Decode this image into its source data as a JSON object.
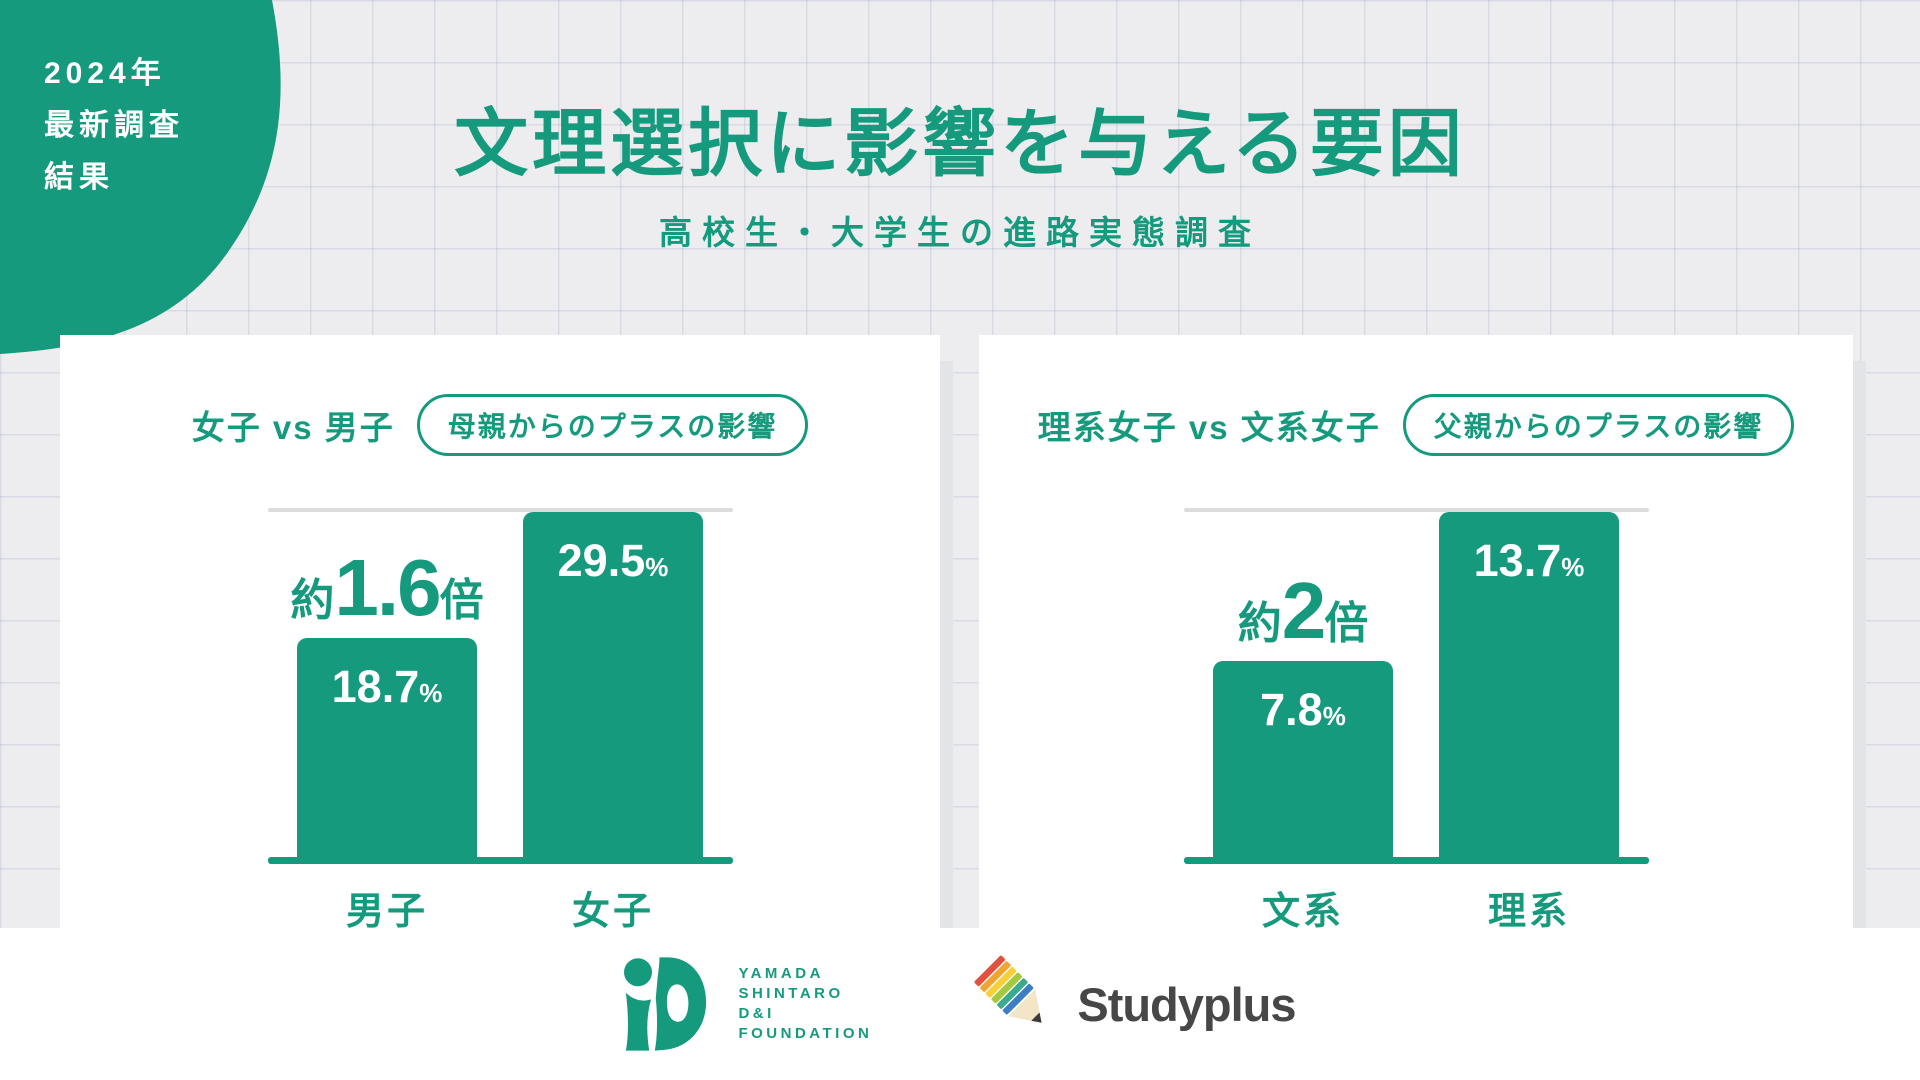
{
  "badge": {
    "lines": [
      "2024年",
      "最新調査",
      "結果"
    ]
  },
  "header": {
    "title": "文理選択に影響を与える要因",
    "subtitle": "高校生・大学生の進路実態調査"
  },
  "charts": [
    {
      "comparison": "女子 vs 男子",
      "tag": "母親からのプラスの影響",
      "ratio": {
        "prefix": "約",
        "number": "1.6",
        "suffix": "倍"
      },
      "bars": [
        {
          "label": "男子",
          "display": "18.7",
          "unit": "%"
        },
        {
          "label": "女子",
          "display": "29.5",
          "unit": "%"
        }
      ]
    },
    {
      "comparison": "理系女子 vs 文系女子",
      "tag": "父親からのプラスの影響",
      "ratio": {
        "prefix": "約",
        "number": "2",
        "suffix": "倍"
      },
      "bars": [
        {
          "label": "文系",
          "display": "7.8",
          "unit": "%"
        },
        {
          "label": "理系",
          "display": "13.7",
          "unit": "%"
        }
      ]
    }
  ],
  "chart_data": [
    {
      "type": "bar",
      "title": "女子 vs 男子（母親からのプラスの影響）",
      "categories": [
        "男子",
        "女子"
      ],
      "values": [
        18.7,
        29.5
      ],
      "unit": "%",
      "annotation": "約1.6倍",
      "xlabel": "",
      "ylabel": "",
      "ylim": [
        0,
        29.5
      ],
      "grid": false,
      "legend": "none"
    },
    {
      "type": "bar",
      "title": "理系女子 vs 文系女子（父親からのプラスの影響）",
      "categories": [
        "文系",
        "理系"
      ],
      "values": [
        7.8,
        13.7
      ],
      "unit": "%",
      "annotation": "約2倍",
      "xlabel": "",
      "ylabel": "",
      "ylim": [
        0,
        13.7
      ],
      "grid": false,
      "legend": "none"
    }
  ],
  "footer": {
    "foundation": {
      "lines": [
        "YAMADA",
        "SHINTARO",
        "D&I",
        "FOUNDATION"
      ]
    },
    "studyplus": {
      "name": "Studyplus"
    }
  },
  "colors": {
    "brand_green": "#169a7e",
    "background": "#ededef",
    "grid_line": "rgba(124,141,181,0.18)",
    "card": "#ffffff",
    "card_shadow": "#e3e4e7",
    "reference_line": "#dcdcdc",
    "bar_value_text": "#ffffff",
    "studyplus_text": "#474747",
    "pencil_stripes": [
      "#e2513e",
      "#f2a430",
      "#f6cf39",
      "#a5c93e",
      "#3cab8d",
      "#3e7dc1"
    ],
    "pencil_wood": "#f3e6c8",
    "pencil_lead": "#3a3a3a"
  }
}
